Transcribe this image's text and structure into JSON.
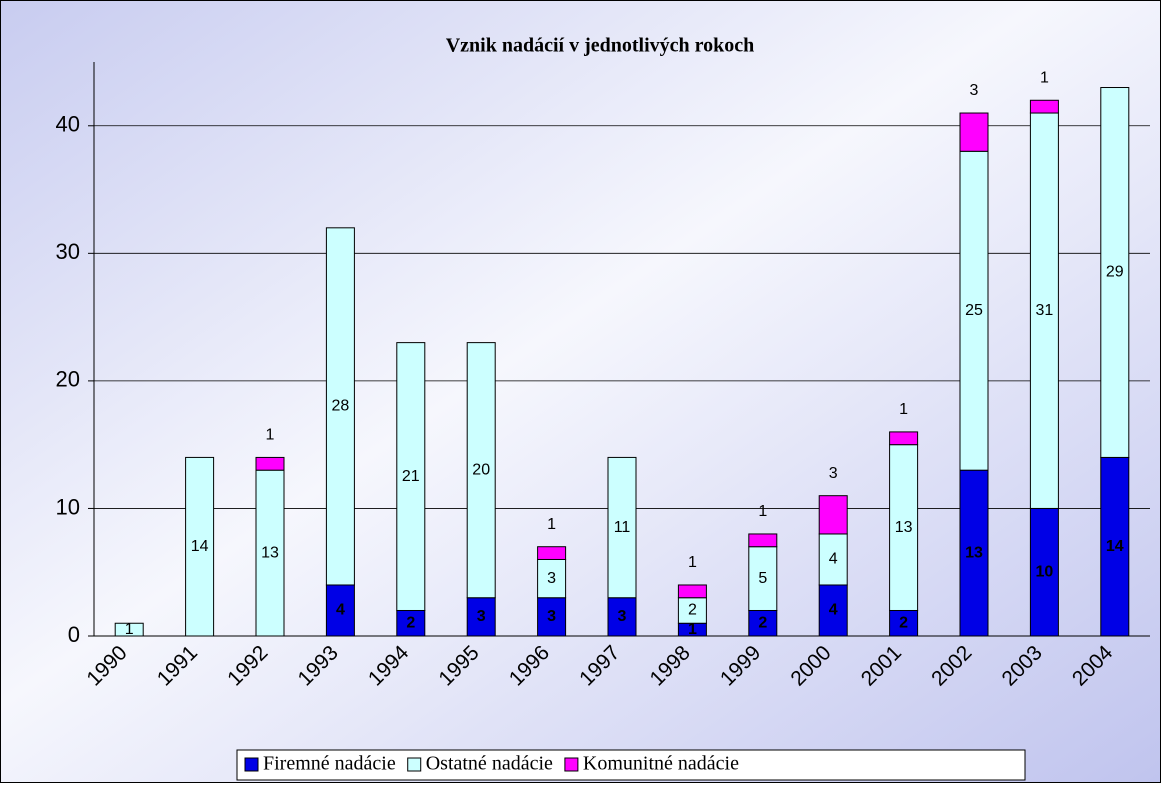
{
  "chart_data": {
    "type": "stacked-bar",
    "title": "Vznik nadácií v jednotlivých rokoch",
    "categories": [
      "1990",
      "1991",
      "1992",
      "1993",
      "1994",
      "1995",
      "1996",
      "1997",
      "1998",
      "1999",
      "2000",
      "2001",
      "2002",
      "2003",
      "2004"
    ],
    "series": [
      {
        "name": "Firemné nadácie",
        "color": "#0000e6",
        "values": [
          0,
          0,
          0,
          4,
          2,
          3,
          3,
          3,
          1,
          2,
          4,
          2,
          13,
          10,
          14
        ]
      },
      {
        "name": "Ostatné nadácie",
        "color": "#ccffff",
        "values": [
          1,
          14,
          13,
          28,
          21,
          20,
          3,
          11,
          2,
          5,
          4,
          13,
          25,
          31,
          29
        ]
      },
      {
        "name": "Komunitné nadácie",
        "color": "#ff00ff",
        "values": [
          0,
          0,
          1,
          0,
          0,
          0,
          1,
          0,
          1,
          1,
          3,
          1,
          3,
          1,
          0
        ]
      }
    ],
    "ylim": [
      0,
      45
    ],
    "yticks": [
      0,
      10,
      20,
      30,
      40
    ],
    "grid": true,
    "legend": "bottom"
  }
}
